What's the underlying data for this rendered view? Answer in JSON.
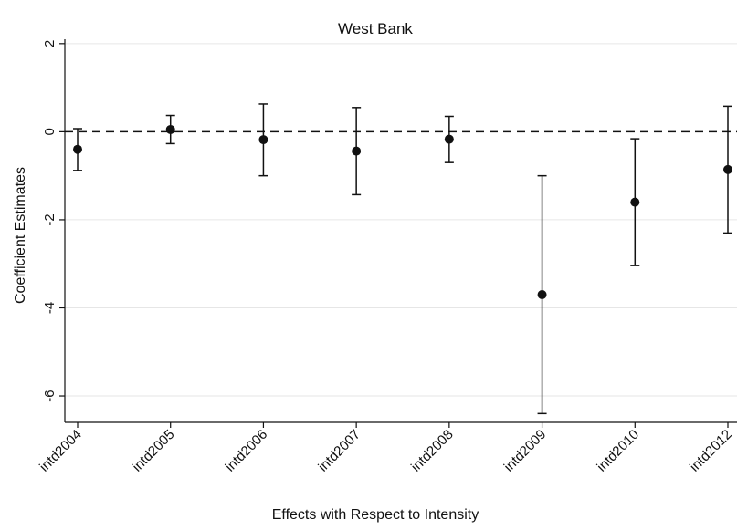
{
  "chart_data": {
    "type": "scatter",
    "title": "West Bank",
    "xlabel": "Effects with Respect to Intensity",
    "ylabel": "Coefficient Estimates",
    "ylim": [
      -6.6,
      2.1
    ],
    "yticks": [
      2,
      0,
      -2,
      -4,
      -6
    ],
    "grid": true,
    "reference_line": 0,
    "categories": [
      "intd2004",
      "intd2005",
      "intd2006",
      "intd2007",
      "intd2008",
      "intd2009",
      "intd2010",
      "intd2012"
    ],
    "estimates": [
      -0.4,
      0.05,
      -0.18,
      -0.44,
      -0.17,
      -3.7,
      -1.6,
      -0.86
    ],
    "ci_low": [
      -0.88,
      -0.27,
      -1.0,
      -1.43,
      -0.7,
      -6.4,
      -3.04,
      -2.3
    ],
    "ci_high": [
      0.07,
      0.37,
      0.63,
      0.55,
      0.35,
      -1.0,
      -0.16,
      0.58
    ]
  }
}
